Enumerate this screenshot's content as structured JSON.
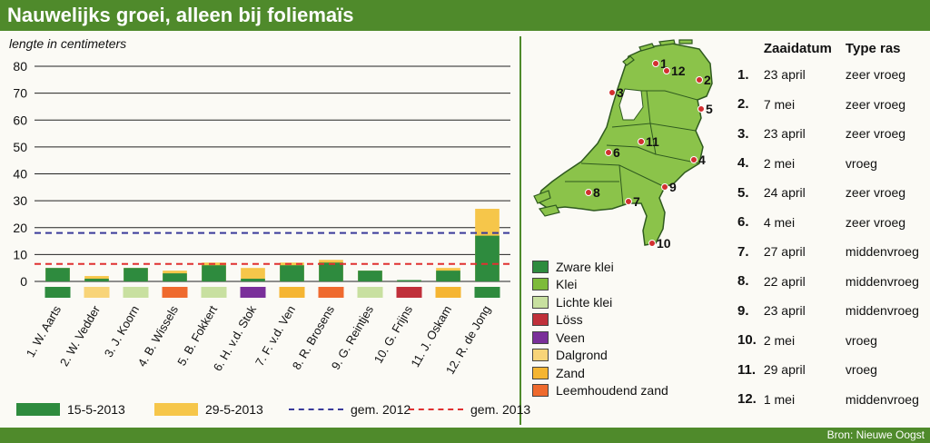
{
  "title": "Nauwelijks groei, alleen bij foliemaïs",
  "source": "Bron: Nieuwe Oogst",
  "chart_data": {
    "type": "bar",
    "ylabel": "lengte in centimeters",
    "ylim": [
      0,
      80
    ],
    "yticks": [
      0,
      10,
      20,
      30,
      40,
      50,
      60,
      70,
      80
    ],
    "categories": [
      "1. W. Aarts",
      "2. W. Vedder",
      "3. J. Koorn",
      "4. B. Wissels",
      "5. B. Fokkert",
      "6. H. v.d. Stok",
      "7. F. v.d. Ven",
      "8. R. Brosens",
      "9. G. Reintjes",
      "10. G. Frijns",
      "11. J. Oskam",
      "12. R. de Jong"
    ],
    "series": [
      {
        "name": "15-5-2013",
        "color": "#2e8b3e",
        "values": [
          5,
          1,
          5,
          3,
          6,
          1,
          6,
          7,
          4,
          0.5,
          4,
          17
        ]
      },
      {
        "name": "29-5-2013",
        "color": "#f6c64a",
        "values": [
          5,
          2,
          5,
          4,
          7,
          5,
          7,
          8,
          4,
          0.5,
          5,
          27
        ]
      }
    ],
    "reference_lines": [
      {
        "name": "gem. 2012",
        "value": 18,
        "color": "#3a3a9a"
      },
      {
        "name": "gem. 2013",
        "value": 6.5,
        "color": "#e03030"
      }
    ],
    "soil_types": [
      {
        "name": "Zware klei",
        "color": "#2e8b3e"
      },
      {
        "name": "Klei",
        "color": "#7dbb3a"
      },
      {
        "name": "Lichte klei",
        "color": "#c8e0a0"
      },
      {
        "name": "Löss",
        "color": "#c0303a"
      },
      {
        "name": "Veen",
        "color": "#7a2f9a"
      },
      {
        "name": "Dalgrond",
        "color": "#f8d478"
      },
      {
        "name": "Zand",
        "color": "#f5b532"
      },
      {
        "name": "Leemhoudend zand",
        "color": "#ef6a2e"
      }
    ],
    "soil_per_category": [
      0,
      5,
      2,
      7,
      2,
      4,
      6,
      7,
      2,
      3,
      6,
      0
    ]
  },
  "table": {
    "header_date": "Zaaidatum",
    "header_type": "Type ras",
    "rows": [
      {
        "num": "1.",
        "date": "23 april",
        "type": "zeer vroeg"
      },
      {
        "num": "2.",
        "date": "7 mei",
        "type": "zeer vroeg"
      },
      {
        "num": "3.",
        "date": "23 april",
        "type": "zeer vroeg"
      },
      {
        "num": "4.",
        "date": "2 mei",
        "type": "vroeg"
      },
      {
        "num": "5.",
        "date": "24 april",
        "type": "zeer vroeg"
      },
      {
        "num": "6.",
        "date": "4 mei",
        "type": "zeer vroeg"
      },
      {
        "num": "7.",
        "date": "27 april",
        "type": "middenvroeg"
      },
      {
        "num": "8.",
        "date": "22 april",
        "type": "middenvroeg"
      },
      {
        "num": "9.",
        "date": "23 april",
        "type": "middenvroeg"
      },
      {
        "num": "10.",
        "date": "2 mei",
        "type": "vroeg"
      },
      {
        "num": "11.",
        "date": "29 april",
        "type": "vroeg"
      },
      {
        "num": "12.",
        "date": "1 mei",
        "type": "middenvroeg"
      }
    ]
  },
  "map": {
    "labels": [
      "1",
      "2",
      "3",
      "4",
      "5",
      "6",
      "7",
      "8",
      "9",
      "10",
      "11",
      "12"
    ]
  }
}
